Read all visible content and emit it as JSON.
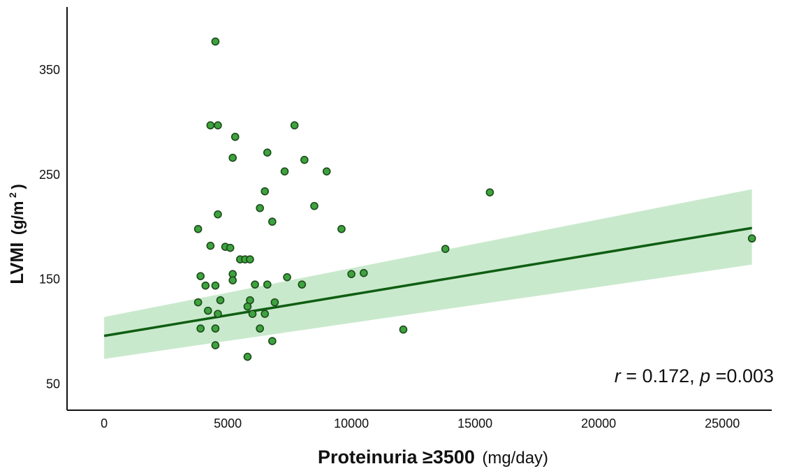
{
  "chart_data": {
    "type": "scatter",
    "title": "",
    "xlabel": {
      "bold_part": "Proteinuria ≥3500",
      "unit_part": "(mg/day)"
    },
    "ylabel": {
      "bold_part": "LVMI",
      "unit_part": "(g/m",
      "superscript": "2",
      "unit_close": ")"
    },
    "xlim": [
      -1500,
      27000
    ],
    "ylim": [
      25,
      410
    ],
    "xticks": [
      0,
      5000,
      10000,
      15000,
      20000,
      25000
    ],
    "yticks": [
      50,
      150,
      250,
      350
    ],
    "grid": false,
    "points": [
      {
        "x": 4500,
        "y": 377
      },
      {
        "x": 4300,
        "y": 297
      },
      {
        "x": 4600,
        "y": 297
      },
      {
        "x": 7700,
        "y": 297
      },
      {
        "x": 5300,
        "y": 286
      },
      {
        "x": 6600,
        "y": 271
      },
      {
        "x": 5200,
        "y": 266
      },
      {
        "x": 8100,
        "y": 264
      },
      {
        "x": 7300,
        "y": 253
      },
      {
        "x": 9000,
        "y": 253
      },
      {
        "x": 15600,
        "y": 233
      },
      {
        "x": 6500,
        "y": 234
      },
      {
        "x": 8500,
        "y": 220
      },
      {
        "x": 6300,
        "y": 218
      },
      {
        "x": 4600,
        "y": 212
      },
      {
        "x": 6800,
        "y": 205
      },
      {
        "x": 3800,
        "y": 198
      },
      {
        "x": 9600,
        "y": 198
      },
      {
        "x": 26200,
        "y": 189
      },
      {
        "x": 4300,
        "y": 182
      },
      {
        "x": 4900,
        "y": 181
      },
      {
        "x": 5100,
        "y": 180
      },
      {
        "x": 13800,
        "y": 179
      },
      {
        "x": 5500,
        "y": 169
      },
      {
        "x": 5700,
        "y": 169
      },
      {
        "x": 5900,
        "y": 169
      },
      {
        "x": 5200,
        "y": 155
      },
      {
        "x": 10000,
        "y": 155
      },
      {
        "x": 10500,
        "y": 156
      },
      {
        "x": 3900,
        "y": 153
      },
      {
        "x": 7400,
        "y": 152
      },
      {
        "x": 5200,
        "y": 149
      },
      {
        "x": 4100,
        "y": 144
      },
      {
        "x": 4500,
        "y": 144
      },
      {
        "x": 6100,
        "y": 145
      },
      {
        "x": 6600,
        "y": 145
      },
      {
        "x": 8000,
        "y": 145
      },
      {
        "x": 4700,
        "y": 130
      },
      {
        "x": 5900,
        "y": 130
      },
      {
        "x": 3800,
        "y": 128
      },
      {
        "x": 6900,
        "y": 128
      },
      {
        "x": 5800,
        "y": 124
      },
      {
        "x": 4200,
        "y": 120
      },
      {
        "x": 4600,
        "y": 117
      },
      {
        "x": 6000,
        "y": 117
      },
      {
        "x": 6500,
        "y": 117
      },
      {
        "x": 3900,
        "y": 103
      },
      {
        "x": 4500,
        "y": 103
      },
      {
        "x": 6300,
        "y": 103
      },
      {
        "x": 12100,
        "y": 102
      },
      {
        "x": 6800,
        "y": 91
      },
      {
        "x": 4500,
        "y": 87
      },
      {
        "x": 5800,
        "y": 76
      }
    ],
    "regression": {
      "x": [
        0,
        26200
      ],
      "y": [
        96,
        199
      ]
    },
    "confidence_band": {
      "x": [
        0,
        26200
      ],
      "upper": [
        114,
        236
      ],
      "lower": [
        74,
        164
      ]
    },
    "annotation": {
      "r_symbol": "r",
      "r_text": " = 0.172, ",
      "p_symbol": "p",
      "p_text": "=0.003"
    },
    "colors": {
      "point_fill": "#3ea33e",
      "point_stroke": "#1c4a1c",
      "line": "#0f5e12",
      "band": "#c9e9cc"
    }
  }
}
